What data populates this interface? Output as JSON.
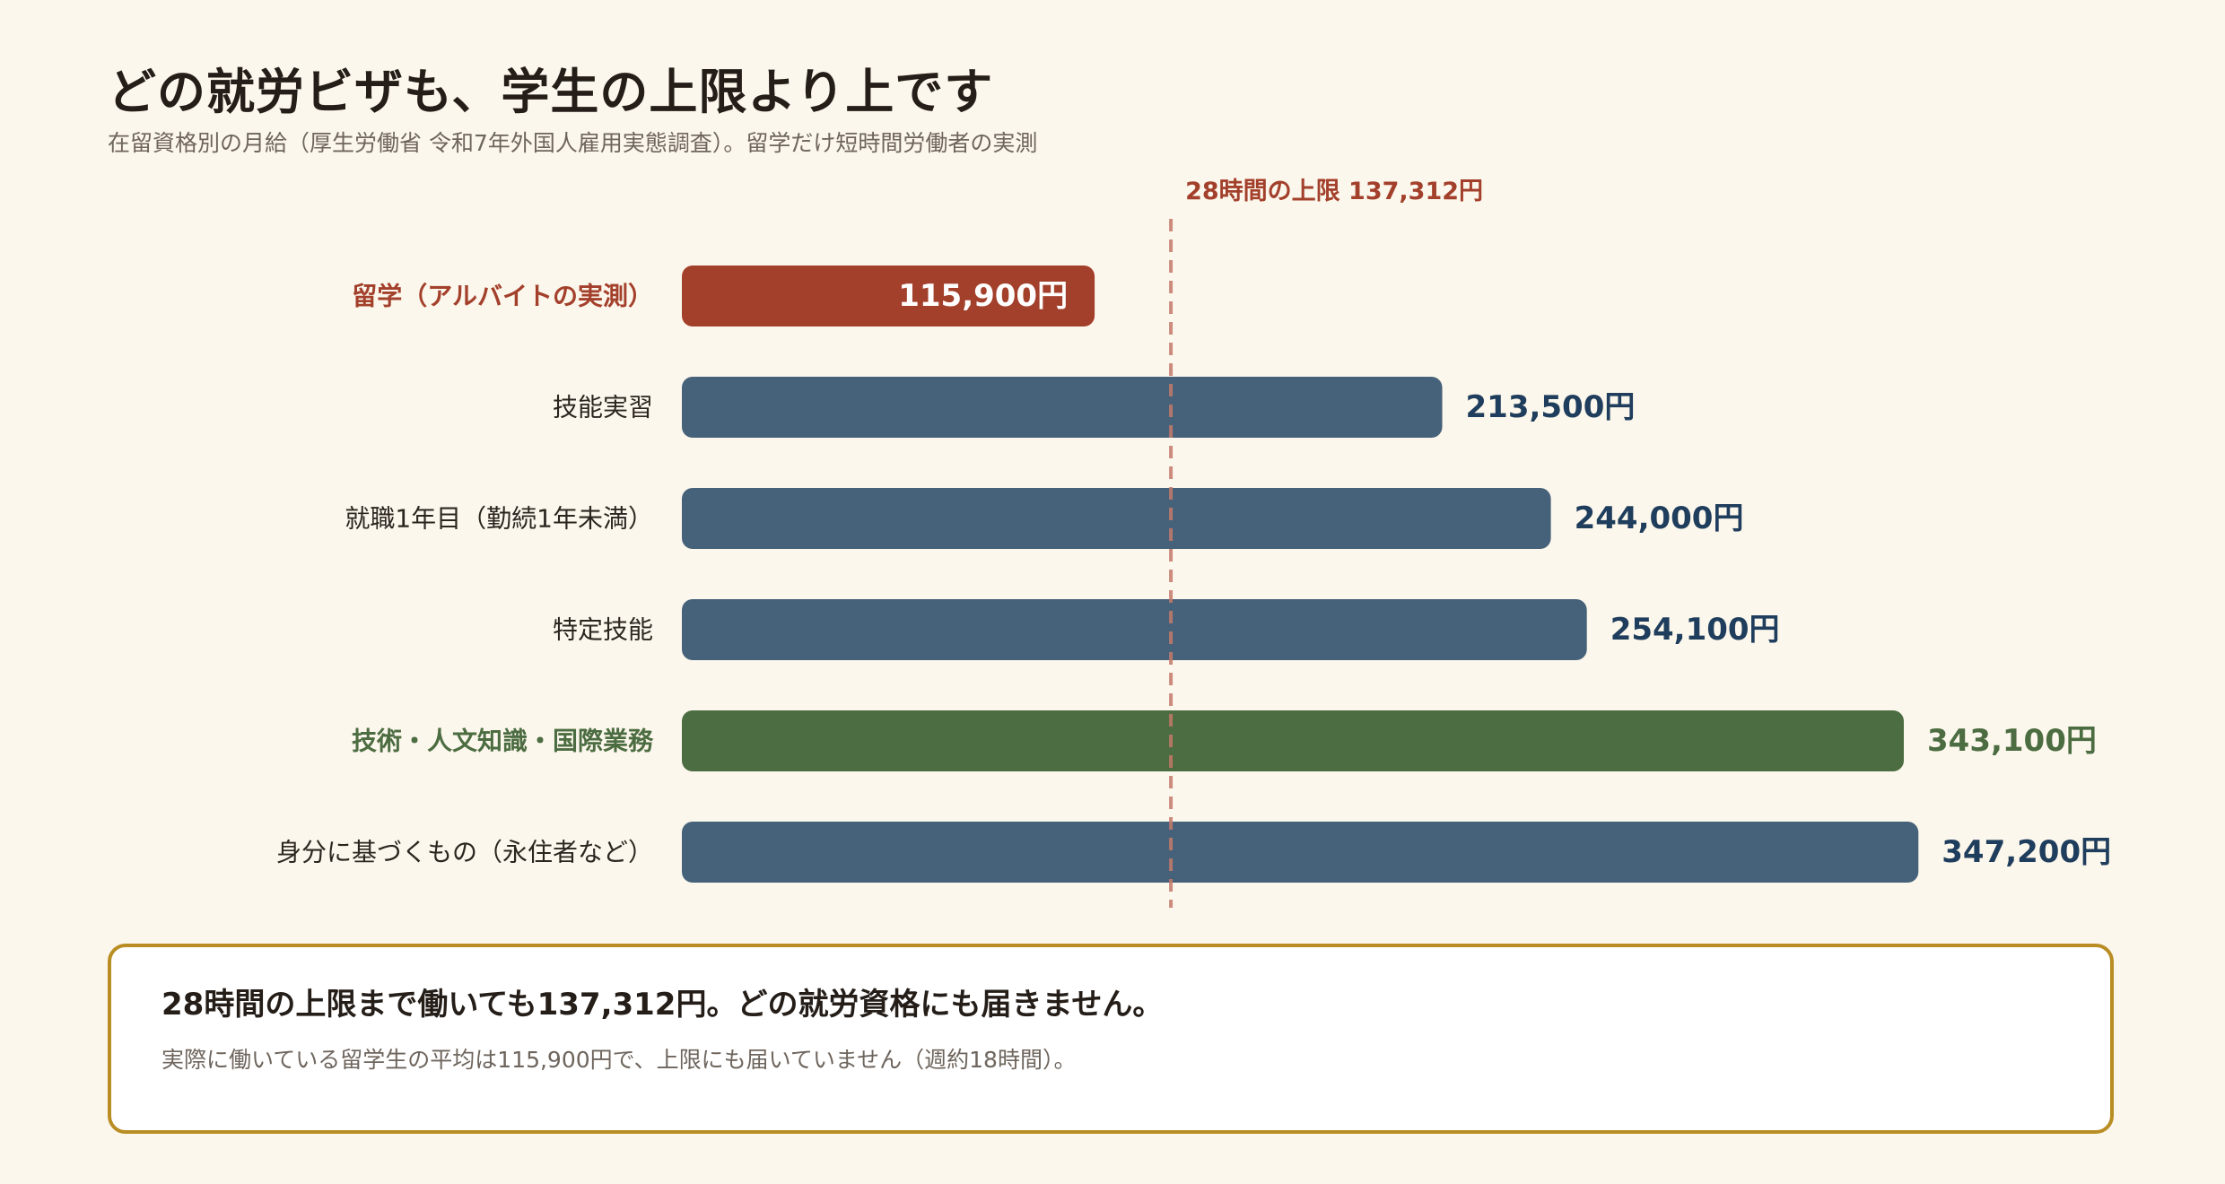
{
  "header": {
    "title": "どの就労ビザも、学生の上限より上です",
    "subtitle": "在留資格別の月給（厚生労働省 令和7年外国人雇用実態調査）。留学だけ短時間労働者の実測"
  },
  "chart_data": {
    "type": "bar",
    "orientation": "horizontal",
    "categories": [
      "留学（アルバイトの実測）",
      "技能実習",
      "就職1年目（勤続1年未満）",
      "特定技能",
      "技術・人文知識・国際業務",
      "身分に基づくもの（永住者など）"
    ],
    "values": [
      115900,
      213500,
      244000,
      254100,
      343100,
      347200
    ],
    "value_labels": [
      "115,900円",
      "213,500円",
      "244,000円",
      "254,100円",
      "343,100円",
      "347,200円"
    ],
    "label_inside": [
      true,
      false,
      false,
      false,
      false,
      false
    ],
    "colors": [
      "#a3402c",
      "#46627a",
      "#46627a",
      "#46627a",
      "#4c6c41",
      "#46627a"
    ],
    "label_colors": [
      "#a3402c",
      "#2b2520",
      "#2b2520",
      "#2b2520",
      "#4c6c41",
      "#2b2520"
    ],
    "value_label_colors": [
      "#ffffff",
      "#1f3d5c",
      "#1f3d5c",
      "#1f3d5c",
      "#4c6c41",
      "#1f3d5c"
    ],
    "bold_labels": [
      true,
      false,
      false,
      false,
      true,
      false
    ],
    "reference_line": {
      "value": 137312,
      "label": "28時間の上限 137,312円",
      "color": "#c47a6a"
    },
    "xlim": [
      0,
      400000
    ],
    "grid": false,
    "legend": "none"
  },
  "callout": {
    "main": "28時間の上限まで働いても137,312円。どの就労資格にも届きません。",
    "sub": "実際に働いている留学生の平均は115,900円で、上限にも届いていません（週約18時間）。"
  }
}
